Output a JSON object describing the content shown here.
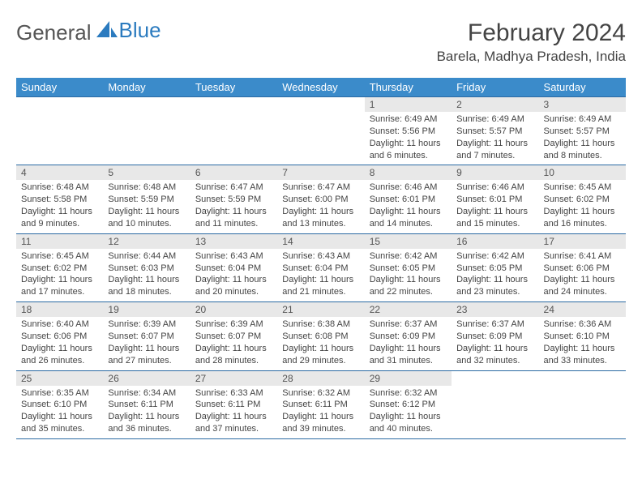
{
  "brand": {
    "part1": "General",
    "part2": "Blue"
  },
  "header": {
    "title": "February 2024",
    "location": "Barela, Madhya Pradesh, India"
  },
  "colors": {
    "header_bg": "#3b8bca",
    "header_text": "#ffffff",
    "daynum_bg": "#e8e8e8",
    "border": "#2b6aa3",
    "logo_blue": "#2b7bbf",
    "body_text": "#444444"
  },
  "weekdays": [
    "Sunday",
    "Monday",
    "Tuesday",
    "Wednesday",
    "Thursday",
    "Friday",
    "Saturday"
  ],
  "weeks": [
    [
      null,
      null,
      null,
      null,
      {
        "n": "1",
        "sr": "6:49 AM",
        "ss": "5:56 PM",
        "dl": "11 hours and 6 minutes."
      },
      {
        "n": "2",
        "sr": "6:49 AM",
        "ss": "5:57 PM",
        "dl": "11 hours and 7 minutes."
      },
      {
        "n": "3",
        "sr": "6:49 AM",
        "ss": "5:57 PM",
        "dl": "11 hours and 8 minutes."
      }
    ],
    [
      {
        "n": "4",
        "sr": "6:48 AM",
        "ss": "5:58 PM",
        "dl": "11 hours and 9 minutes."
      },
      {
        "n": "5",
        "sr": "6:48 AM",
        "ss": "5:59 PM",
        "dl": "11 hours and 10 minutes."
      },
      {
        "n": "6",
        "sr": "6:47 AM",
        "ss": "5:59 PM",
        "dl": "11 hours and 11 minutes."
      },
      {
        "n": "7",
        "sr": "6:47 AM",
        "ss": "6:00 PM",
        "dl": "11 hours and 13 minutes."
      },
      {
        "n": "8",
        "sr": "6:46 AM",
        "ss": "6:01 PM",
        "dl": "11 hours and 14 minutes."
      },
      {
        "n": "9",
        "sr": "6:46 AM",
        "ss": "6:01 PM",
        "dl": "11 hours and 15 minutes."
      },
      {
        "n": "10",
        "sr": "6:45 AM",
        "ss": "6:02 PM",
        "dl": "11 hours and 16 minutes."
      }
    ],
    [
      {
        "n": "11",
        "sr": "6:45 AM",
        "ss": "6:02 PM",
        "dl": "11 hours and 17 minutes."
      },
      {
        "n": "12",
        "sr": "6:44 AM",
        "ss": "6:03 PM",
        "dl": "11 hours and 18 minutes."
      },
      {
        "n": "13",
        "sr": "6:43 AM",
        "ss": "6:04 PM",
        "dl": "11 hours and 20 minutes."
      },
      {
        "n": "14",
        "sr": "6:43 AM",
        "ss": "6:04 PM",
        "dl": "11 hours and 21 minutes."
      },
      {
        "n": "15",
        "sr": "6:42 AM",
        "ss": "6:05 PM",
        "dl": "11 hours and 22 minutes."
      },
      {
        "n": "16",
        "sr": "6:42 AM",
        "ss": "6:05 PM",
        "dl": "11 hours and 23 minutes."
      },
      {
        "n": "17",
        "sr": "6:41 AM",
        "ss": "6:06 PM",
        "dl": "11 hours and 24 minutes."
      }
    ],
    [
      {
        "n": "18",
        "sr": "6:40 AM",
        "ss": "6:06 PM",
        "dl": "11 hours and 26 minutes."
      },
      {
        "n": "19",
        "sr": "6:39 AM",
        "ss": "6:07 PM",
        "dl": "11 hours and 27 minutes."
      },
      {
        "n": "20",
        "sr": "6:39 AM",
        "ss": "6:07 PM",
        "dl": "11 hours and 28 minutes."
      },
      {
        "n": "21",
        "sr": "6:38 AM",
        "ss": "6:08 PM",
        "dl": "11 hours and 29 minutes."
      },
      {
        "n": "22",
        "sr": "6:37 AM",
        "ss": "6:09 PM",
        "dl": "11 hours and 31 minutes."
      },
      {
        "n": "23",
        "sr": "6:37 AM",
        "ss": "6:09 PM",
        "dl": "11 hours and 32 minutes."
      },
      {
        "n": "24",
        "sr": "6:36 AM",
        "ss": "6:10 PM",
        "dl": "11 hours and 33 minutes."
      }
    ],
    [
      {
        "n": "25",
        "sr": "6:35 AM",
        "ss": "6:10 PM",
        "dl": "11 hours and 35 minutes."
      },
      {
        "n": "26",
        "sr": "6:34 AM",
        "ss": "6:11 PM",
        "dl": "11 hours and 36 minutes."
      },
      {
        "n": "27",
        "sr": "6:33 AM",
        "ss": "6:11 PM",
        "dl": "11 hours and 37 minutes."
      },
      {
        "n": "28",
        "sr": "6:32 AM",
        "ss": "6:11 PM",
        "dl": "11 hours and 39 minutes."
      },
      {
        "n": "29",
        "sr": "6:32 AM",
        "ss": "6:12 PM",
        "dl": "11 hours and 40 minutes."
      },
      null,
      null
    ]
  ],
  "labels": {
    "sunrise": "Sunrise:",
    "sunset": "Sunset:",
    "daylight": "Daylight:"
  }
}
